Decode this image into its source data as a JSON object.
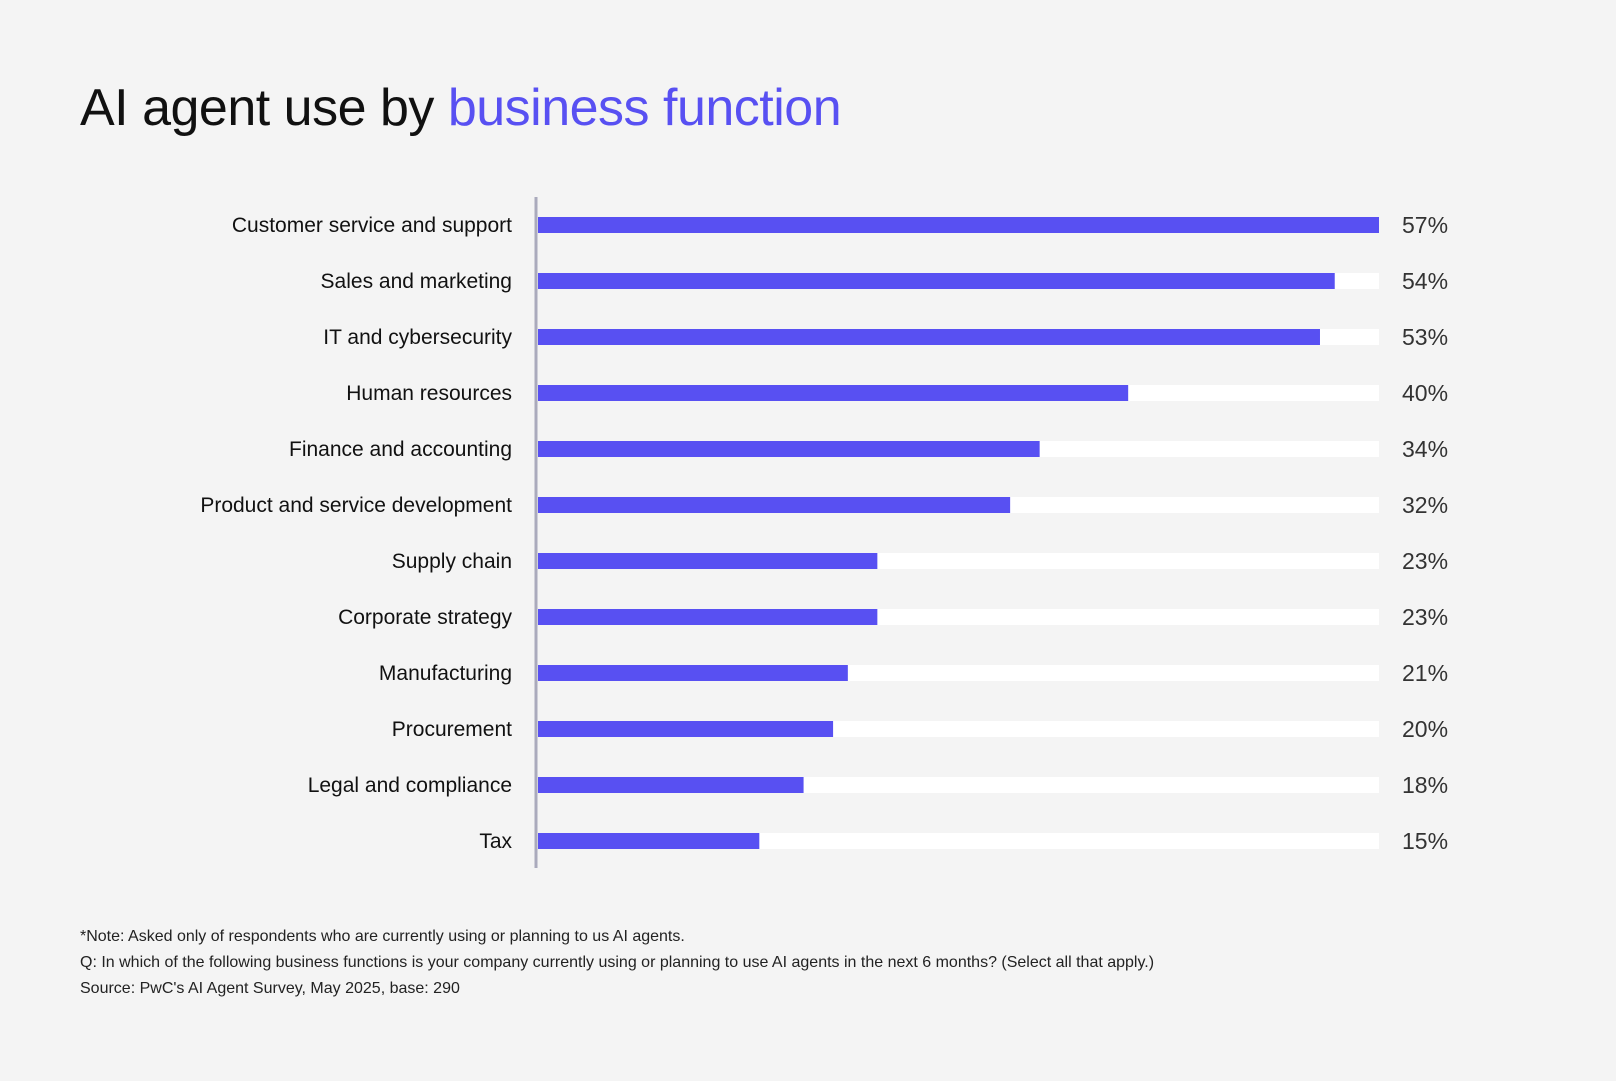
{
  "title": {
    "prefix": "AI agent use by",
    "highlight": "business function"
  },
  "colors": {
    "bar": "#5850f2",
    "track": "#ffffff",
    "axis": "#aaaabc",
    "highlight": "#5850f2",
    "text": "#111111",
    "background": "#f4f4f4"
  },
  "chart_data": {
    "type": "bar",
    "orientation": "horizontal",
    "categories": [
      "Customer service and support",
      "Sales and marketing",
      "IT and cybersecurity",
      "Human resources",
      "Finance and accounting",
      "Product and service development",
      "Supply chain",
      "Corporate strategy",
      "Manufacturing",
      "Procurement",
      "Legal and compliance",
      "Tax"
    ],
    "values": [
      57,
      54,
      53,
      40,
      34,
      32,
      23,
      23,
      21,
      20,
      18,
      15
    ],
    "value_labels": [
      "57%",
      "54%",
      "53%",
      "40%",
      "34%",
      "32%",
      "23%",
      "23%",
      "21%",
      "20%",
      "18%",
      "15%"
    ],
    "unit": "%",
    "xlim": [
      0,
      57
    ],
    "grid": false,
    "legend": "none"
  },
  "notes": {
    "note": "*Note: Asked only of respondents who are currently using or planning to us AI agents.",
    "question": "Q: In which of the following business functions is your company currently using or planning to use AI agents in the next 6 months? (Select all that apply.)",
    "source": "Source: PwC's AI Agent Survey, May 2025, base: 290"
  }
}
